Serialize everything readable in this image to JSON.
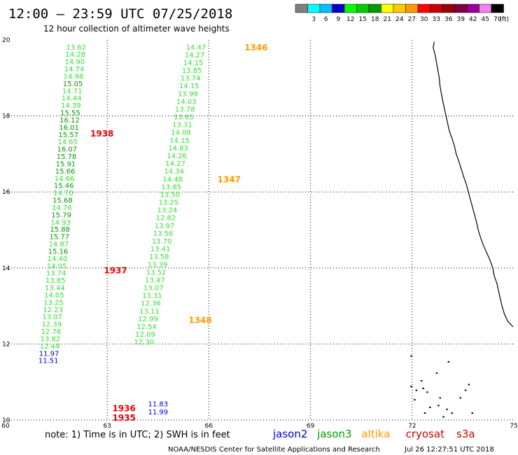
{
  "header": {
    "title": "12:00 – 23:59 UTC 07/25/2018",
    "subtitle": "12 hour collection of altimeter wave heights"
  },
  "legend": {
    "unit": "(ft)",
    "bins": [
      {
        "label": "",
        "color": "#7f7f7f"
      },
      {
        "label": "3",
        "color": "#00ffff"
      },
      {
        "label": "6",
        "color": "#00bfff"
      },
      {
        "label": "9",
        "color": "#0000cc"
      },
      {
        "label": "12",
        "color": "#00ff00"
      },
      {
        "label": "15",
        "color": "#00cc00"
      },
      {
        "label": "18",
        "color": "#009900"
      },
      {
        "label": "21",
        "color": "#ffff00"
      },
      {
        "label": "24",
        "color": "#ffcc00"
      },
      {
        "label": "27",
        "color": "#ff9900"
      },
      {
        "label": "30",
        "color": "#ff0000"
      },
      {
        "label": "33",
        "color": "#cc0000"
      },
      {
        "label": "36",
        "color": "#990000"
      },
      {
        "label": "39",
        "color": "#800040"
      },
      {
        "label": "42",
        "color": "#990099"
      },
      {
        "label": "45",
        "color": "#ee82ee"
      },
      {
        "label": "70",
        "color": "#000000"
      }
    ]
  },
  "axes": {
    "x_ticks": [
      60,
      63,
      66,
      69,
      72,
      75
    ],
    "y_ticks": [
      10,
      12,
      14,
      16,
      18,
      20
    ],
    "x_range": [
      60,
      75
    ],
    "y_range": [
      10,
      20
    ]
  },
  "footer": {
    "note": "note: 1) Time is in UTC; 2) SWH is in feet",
    "credit": "NOAA/NESDIS Center for Satellite Applications and Research",
    "timestamp": "Jul 26 12:27:51 UTC 2018"
  },
  "satellites": [
    {
      "name": "jason2",
      "color": "#0000cc"
    },
    {
      "name": "jason3",
      "color": "#009900"
    },
    {
      "name": "altika",
      "color": "#ff9900"
    },
    {
      "name": "cryosat",
      "color": "#cc0000"
    },
    {
      "name": "s3a",
      "color": "#cc0000"
    }
  ],
  "colors": {
    "light_green": "#33dd33",
    "dark_green": "#009900",
    "blue": "#0000cc",
    "orange": "#ff9900",
    "red": "#ee0000"
  },
  "tracks": [
    {
      "x": 62.08,
      "y0": 19.82,
      "y1": 11.57,
      "values": [
        "13.62",
        "14.28",
        "14.90",
        "14.74",
        "14.98",
        "15.05",
        "14.71",
        "14.44",
        "14.39",
        "15.55",
        "16.12",
        "16.01",
        "15.57",
        "14.65",
        "16.07",
        "15.78",
        "15.91",
        "15.66",
        "14.66",
        "15.46",
        "14.70",
        "15.68",
        "14.76",
        "15.79",
        "14.93",
        "15.88",
        "15.77",
        "14.87",
        "15.16",
        "14.40",
        "14.05",
        "13.74",
        "13.85",
        "13.44",
        "14.05",
        "13.25",
        "12.23",
        "13.07",
        "12.39",
        "12.76",
        "13.82",
        "12.44",
        "11.97",
        "11.51"
      ]
    },
    {
      "x": 65.62,
      "y0": 19.82,
      "y1": 12.06,
      "values": [
        "14.47",
        "14.27",
        "14.15",
        "13.85",
        "13.74",
        "14.15",
        "13.99",
        "14.03",
        "13.78",
        "13.65",
        "13.31",
        "14.08",
        "14.15",
        "14.83",
        "14.26",
        "14.27",
        "14.34",
        "14.48",
        "13.85",
        "13.50",
        "13.25",
        "13.24",
        "12.82",
        "13.97",
        "13.56",
        "13.70",
        "13.41",
        "13.58",
        "13.39",
        "13.52",
        "13.47",
        "13.07",
        "13.31",
        "12.36",
        "13.11",
        "12.99",
        "12.54",
        "12.09",
        "12.30"
      ]
    },
    {
      "x": 64.5,
      "y0": 10.43,
      "y1": 10.22,
      "values": [
        "11.83",
        "11.99"
      ]
    }
  ],
  "pass_labels": [
    {
      "text": "1346",
      "lon": 67.05,
      "lat": 19.82,
      "color": "#ff9900"
    },
    {
      "text": "1347",
      "lon": 66.25,
      "lat": 16.34,
      "color": "#ff9900"
    },
    {
      "text": "1348",
      "lon": 65.4,
      "lat": 12.64,
      "color": "#ff9900"
    },
    {
      "text": "1938",
      "lon": 62.5,
      "lat": 17.55,
      "color": "#ee0000"
    },
    {
      "text": "1937",
      "lon": 62.9,
      "lat": 13.95,
      "color": "#ee0000"
    },
    {
      "text": "1936",
      "lon": 63.15,
      "lat": 10.32,
      "color": "#ee0000"
    },
    {
      "text": "1935",
      "lon": 63.15,
      "lat": 10.07,
      "color": "#ee0000"
    }
  ],
  "coastline": [
    [
      72.65,
      19.95
    ],
    [
      72.62,
      19.8
    ],
    [
      72.68,
      19.6
    ],
    [
      72.72,
      19.4
    ],
    [
      72.76,
      19.2
    ],
    [
      72.8,
      19.0
    ],
    [
      72.82,
      18.8
    ],
    [
      72.86,
      18.6
    ],
    [
      72.9,
      18.4
    ],
    [
      72.95,
      18.2
    ],
    [
      73.0,
      18.0
    ],
    [
      73.05,
      17.8
    ],
    [
      73.1,
      17.6
    ],
    [
      73.18,
      17.4
    ],
    [
      73.25,
      17.2
    ],
    [
      73.3,
      17.0
    ],
    [
      73.38,
      16.8
    ],
    [
      73.45,
      16.6
    ],
    [
      73.52,
      16.4
    ],
    [
      73.6,
      16.2
    ],
    [
      73.66,
      16.0
    ],
    [
      73.72,
      15.8
    ],
    [
      73.78,
      15.6
    ],
    [
      73.84,
      15.4
    ],
    [
      73.9,
      15.2
    ],
    [
      73.95,
      15.0
    ],
    [
      74.02,
      14.8
    ],
    [
      74.1,
      14.6
    ],
    [
      74.2,
      14.4
    ],
    [
      74.3,
      14.2
    ],
    [
      74.38,
      14.0
    ],
    [
      74.42,
      13.8
    ],
    [
      74.5,
      13.6
    ],
    [
      74.55,
      13.4
    ],
    [
      74.6,
      13.2
    ],
    [
      74.65,
      13.0
    ],
    [
      74.72,
      12.8
    ],
    [
      74.82,
      12.6
    ],
    [
      74.98,
      12.45
    ]
  ],
  "islands": [
    [
      71.95,
      11.7
    ],
    [
      71.95,
      10.9
    ],
    [
      72.05,
      10.55
    ],
    [
      72.1,
      10.8
    ],
    [
      72.25,
      11.05
    ],
    [
      72.3,
      10.85
    ],
    [
      72.42,
      10.75
    ],
    [
      72.5,
      10.35
    ],
    [
      72.7,
      11.25
    ],
    [
      72.75,
      10.4
    ],
    [
      72.8,
      10.6
    ],
    [
      72.9,
      10.1
    ],
    [
      73.0,
      10.3
    ],
    [
      73.15,
      10.2
    ],
    [
      73.4,
      10.6
    ],
    [
      73.55,
      10.8
    ],
    [
      73.65,
      10.95
    ],
    [
      73.75,
      10.2
    ],
    [
      73.05,
      11.55
    ],
    [
      72.35,
      10.2
    ]
  ]
}
